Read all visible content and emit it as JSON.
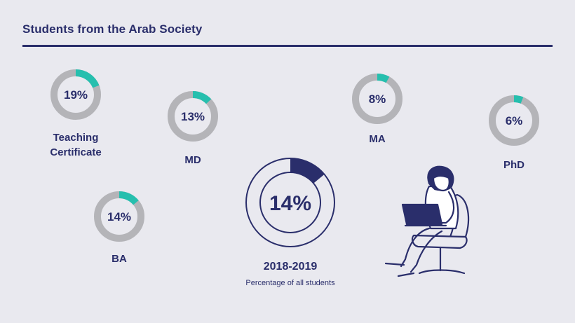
{
  "header": {
    "title": "Students from the Arab Society"
  },
  "summary": {
    "year": "2018-2019",
    "subtitle": "Percentage of all students"
  },
  "colors": {
    "background": "#e9e9ef",
    "navy": "#2a2e6b",
    "ring_gray": "#b4b4b8",
    "teal": "#26bfae"
  },
  "chart_data": {
    "type": "pie",
    "series": [
      {
        "name": "Teaching Certificate",
        "value": 19,
        "label": "19%"
      },
      {
        "name": "MD",
        "value": 13,
        "label": "13%"
      },
      {
        "name": "MA",
        "value": 8,
        "label": "8%"
      },
      {
        "name": "PhD",
        "value": 6,
        "label": "6%"
      },
      {
        "name": "BA",
        "value": 14,
        "label": "14%"
      }
    ],
    "total": {
      "value": 14,
      "label": "14%"
    }
  },
  "illustration": {
    "icon": "woman-with-laptop-icon"
  }
}
